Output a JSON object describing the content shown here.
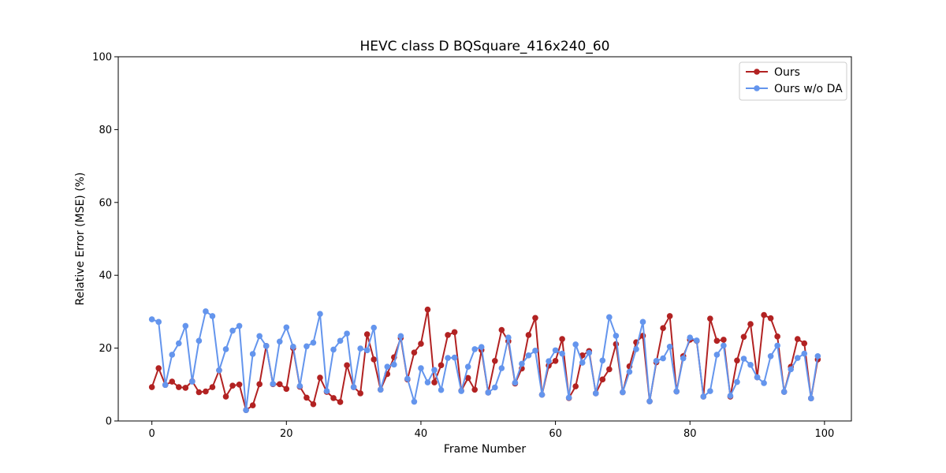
{
  "chart_data": {
    "type": "line",
    "title": "HEVC class D BQSquare_416x240_60",
    "xlabel": "Frame Number",
    "ylabel": "Relative Error (MSE) (%)",
    "xlim": [
      -5,
      104
    ],
    "ylim": [
      0,
      100
    ],
    "xticks": [
      0,
      20,
      40,
      60,
      80,
      100
    ],
    "yticks": [
      0,
      20,
      40,
      60,
      80,
      100
    ],
    "grid": false,
    "legend_position": "top-right",
    "series": [
      {
        "name": "Ours",
        "color": "#b22222",
        "x": [
          0,
          1,
          2,
          3,
          4,
          5,
          6,
          7,
          8,
          9,
          10,
          11,
          12,
          13,
          14,
          15,
          16,
          17,
          18,
          19,
          20,
          21,
          22,
          23,
          24,
          25,
          26,
          27,
          28,
          29,
          30,
          31,
          32,
          33,
          34,
          35,
          36,
          37,
          38,
          39,
          40,
          41,
          42,
          43,
          44,
          45,
          46,
          47,
          48,
          49,
          50,
          51,
          52,
          53,
          54,
          55,
          56,
          57,
          58,
          59,
          60,
          61,
          62,
          63,
          64,
          65,
          66,
          67,
          68,
          69,
          70,
          71,
          72,
          73,
          74,
          75,
          76,
          77,
          78,
          79,
          80,
          81,
          82,
          83,
          84,
          85,
          86,
          87,
          88,
          89,
          90,
          91,
          92,
          93,
          94,
          95,
          96,
          97,
          98,
          99
        ],
        "values": [
          9.3,
          14.5,
          9.9,
          10.8,
          9.3,
          9.1,
          10.9,
          7.9,
          8.1,
          9.3,
          13.9,
          6.7,
          9.7,
          10.0,
          3.0,
          4.3,
          10.1,
          20.6,
          10.1,
          10.1,
          8.8,
          20.0,
          9.4,
          6.4,
          4.6,
          11.9,
          8.0,
          6.3,
          5.2,
          15.3,
          9.3,
          7.6,
          23.8,
          16.9,
          8.6,
          12.9,
          17.5,
          22.8,
          11.4,
          18.8,
          21.2,
          30.6,
          10.6,
          15.3,
          23.6,
          24.4,
          8.3,
          11.8,
          8.6,
          19.5,
          7.8,
          16.5,
          25.0,
          21.9,
          10.3,
          14.4,
          23.6,
          28.3,
          7.2,
          15.2,
          16.5,
          22.5,
          6.3,
          9.5,
          18.0,
          19.2,
          7.6,
          11.4,
          14.2,
          21.1,
          7.9,
          15.0,
          21.6,
          23.4,
          5.4,
          16.1,
          25.5,
          28.8,
          8.1,
          17.8,
          22.3,
          22.0,
          6.7,
          28.1,
          22.0,
          22.3,
          6.7,
          16.6,
          23.1,
          26.6,
          12.0,
          29.1,
          28.2,
          23.2,
          8.0,
          14.9,
          22.5,
          21.3,
          6.2,
          16.9
        ]
      },
      {
        "name": "Ours w/o DA",
        "color": "#6495ed",
        "x": [
          0,
          1,
          2,
          3,
          4,
          5,
          6,
          7,
          8,
          9,
          10,
          11,
          12,
          13,
          14,
          15,
          16,
          17,
          18,
          19,
          20,
          21,
          22,
          23,
          24,
          25,
          26,
          27,
          28,
          29,
          30,
          31,
          32,
          33,
          34,
          35,
          36,
          37,
          38,
          39,
          40,
          41,
          42,
          43,
          44,
          45,
          46,
          47,
          48,
          49,
          50,
          51,
          52,
          53,
          54,
          55,
          56,
          57,
          58,
          59,
          60,
          61,
          62,
          63,
          64,
          65,
          66,
          67,
          68,
          69,
          70,
          71,
          72,
          73,
          74,
          75,
          76,
          77,
          78,
          79,
          80,
          81,
          82,
          83,
          84,
          85,
          86,
          87,
          88,
          89,
          90,
          91,
          92,
          93,
          94,
          95,
          96,
          97,
          98,
          99
        ],
        "values": [
          27.9,
          27.2,
          9.9,
          18.2,
          21.3,
          26.1,
          10.8,
          22.0,
          30.1,
          28.8,
          13.9,
          19.7,
          24.8,
          26.1,
          3.0,
          18.4,
          23.3,
          20.6,
          10.2,
          21.8,
          25.7,
          20.4,
          9.6,
          20.5,
          21.5,
          29.4,
          8.2,
          19.6,
          22.0,
          24.0,
          9.3,
          19.9,
          19.4,
          25.6,
          8.6,
          14.9,
          15.5,
          23.3,
          11.6,
          5.3,
          14.5,
          10.6,
          14.0,
          8.5,
          17.3,
          17.4,
          8.2,
          14.9,
          19.7,
          20.3,
          7.8,
          9.2,
          14.5,
          22.9,
          10.5,
          15.7,
          18.0,
          19.3,
          7.2,
          16.4,
          19.4,
          18.5,
          6.4,
          21.0,
          16.0,
          18.7,
          7.6,
          16.6,
          28.5,
          23.4,
          7.9,
          13.5,
          19.7,
          27.2,
          5.4,
          16.5,
          17.2,
          20.4,
          8.1,
          17.2,
          22.9,
          22.1,
          6.7,
          8.2,
          18.2,
          20.7,
          6.9,
          10.7,
          17.1,
          15.4,
          12.0,
          10.4,
          17.8,
          20.7,
          8.0,
          14.2,
          17.3,
          18.5,
          6.2,
          17.8
        ]
      }
    ]
  }
}
